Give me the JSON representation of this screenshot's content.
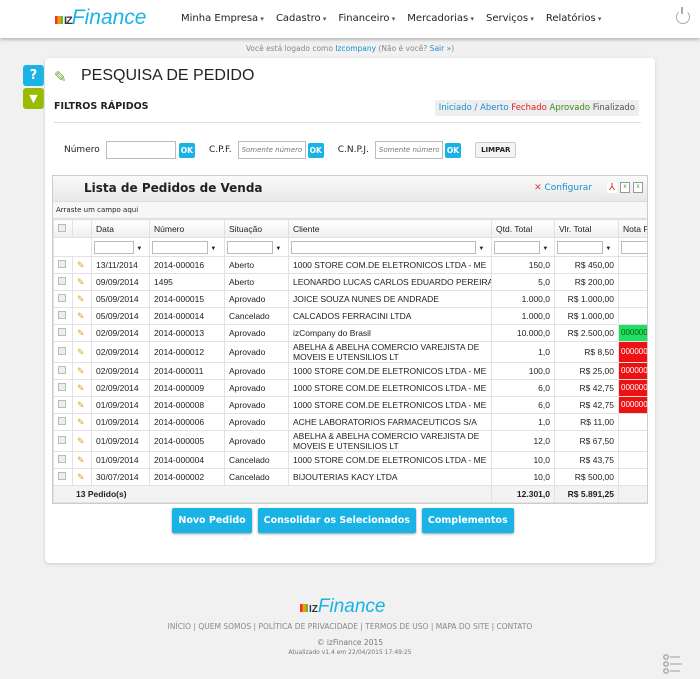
{
  "header": {
    "logo": "izFinance",
    "nav": [
      "Minha Empresa",
      "Cadastro",
      "Financeiro",
      "Mercadorias",
      "Serviços",
      "Relatórios"
    ]
  },
  "login": {
    "prefix": "Você está logado como",
    "user": "Izcompany",
    "middle": "(Não é você?",
    "logout": "Sair »",
    "suffix": ")"
  },
  "page": {
    "title": "PESQUISA DE PEDIDO",
    "quick_filters": "FILTROS RÁPIDOS",
    "legend": [
      {
        "label": "Iniciado / Aberto",
        "color": "#1a8ed0"
      },
      {
        "label": "Fechado",
        "color": "#e02020"
      },
      {
        "label": "Aprovado",
        "color": "#3a8a20"
      },
      {
        "label": "Finalizado",
        "color": "#555555"
      }
    ]
  },
  "filters": {
    "numero_label": "Número",
    "numero_value": "",
    "cpf_label": "C.P.F.",
    "cpf_placeholder": "Somente números",
    "cnpj_label": "C.N.P.J.",
    "cnpj_placeholder": "Somente números",
    "ok": "OK",
    "clear": "LIMPAR"
  },
  "grid": {
    "title": "Lista de Pedidos de Venda",
    "configure": "Configurar",
    "drag_hint": "Arraste um campo aqui",
    "columns": [
      "Data",
      "Número",
      "Situação",
      "Cliente",
      "Qtd. Total",
      "Vlr. Total",
      "Nota F"
    ],
    "rows": [
      [
        "13/11/2014",
        "2014-000016",
        "Aberto",
        "1000 STORE COM.DE ELETRONICOS LTDA - ME",
        "150,0",
        "R$ 450,00",
        ""
      ],
      [
        "09/09/2014",
        "1495",
        "Aberto",
        "LEONARDO LUCAS CARLOS EDUARDO PEREIRA",
        "5,0",
        "R$ 200,00",
        ""
      ],
      [
        "05/09/2014",
        "2014-000015",
        "Aprovado",
        "JOICE SOUZA NUNES DE ANDRADE",
        "1.000,0",
        "R$ 1.000,00",
        ""
      ],
      [
        "05/09/2014",
        "2014-000014",
        "Cancelado",
        "CALCADOS FERRACINI LTDA",
        "1.000,0",
        "R$ 1.000,00",
        ""
      ],
      [
        "02/09/2014",
        "2014-000013",
        "Aprovado",
        "izCompany do Brasil",
        "10.000,0",
        "R$ 2.500,00",
        "000000"
      ],
      [
        "02/09/2014",
        "2014-000012",
        "Aprovado",
        "ABELHA & ABELHA COMERCIO VAREJISTA DE MOVEIS E UTENSILIOS LT",
        "1,0",
        "R$ 8,50",
        "000000"
      ],
      [
        "02/09/2014",
        "2014-000011",
        "Aprovado",
        "1000 STORE COM.DE ELETRONICOS LTDA - ME",
        "100,0",
        "R$ 25,00",
        "000000"
      ],
      [
        "02/09/2014",
        "2014-000009",
        "Aprovado",
        "1000 STORE COM.DE ELETRONICOS LTDA - ME",
        "6,0",
        "R$ 42,75",
        "000000"
      ],
      [
        "01/09/2014",
        "2014-000008",
        "Aprovado",
        "1000 STORE COM.DE ELETRONICOS LTDA - ME",
        "6,0",
        "R$ 42,75",
        "000000"
      ],
      [
        "01/09/2014",
        "2014-000006",
        "Aprovado",
        "ACHE LABORATORIOS FARMACEUTICOS S/A",
        "1,0",
        "R$ 11,00",
        ""
      ],
      [
        "01/09/2014",
        "2014-000005",
        "Aprovado",
        "ABELHA & ABELHA COMERCIO VAREJISTA DE MOVEIS E UTENSILIOS LT",
        "12,0",
        "R$ 67,50",
        ""
      ],
      [
        "01/09/2014",
        "2014-000004",
        "Cancelado",
        "1000 STORE COM.DE ELETRONICOS LTDA - ME",
        "10,0",
        "R$ 43,75",
        ""
      ],
      [
        "30/07/2014",
        "2014-000002",
        "Cancelado",
        "BIJOUTERIAS KACY LTDA",
        "10,0",
        "R$ 500,00",
        ""
      ]
    ],
    "nota_status": [
      "",
      "",
      "",
      "",
      "green",
      "red",
      "red",
      "red",
      "red",
      "",
      "",
      "",
      ""
    ],
    "footer": {
      "count": "13 Pedido(s)",
      "qtd": "12.301,0",
      "vlr": "R$ 5.891,25"
    }
  },
  "buttons": [
    "Novo Pedido",
    "Consolidar os Selecionados",
    "Complementos"
  ],
  "footer": {
    "logo": "izFinance",
    "links": [
      "INÍCIO",
      "QUEM SOMOS",
      "POLÍTICA DE PRIVACIDADE",
      "TERMOS DE USO",
      "MAPA DO SITE",
      "CONTATO"
    ],
    "copyright": "© izFinance 2015",
    "updated": "Atualizado v1.4 em 22/04/2015 17:49:25"
  }
}
